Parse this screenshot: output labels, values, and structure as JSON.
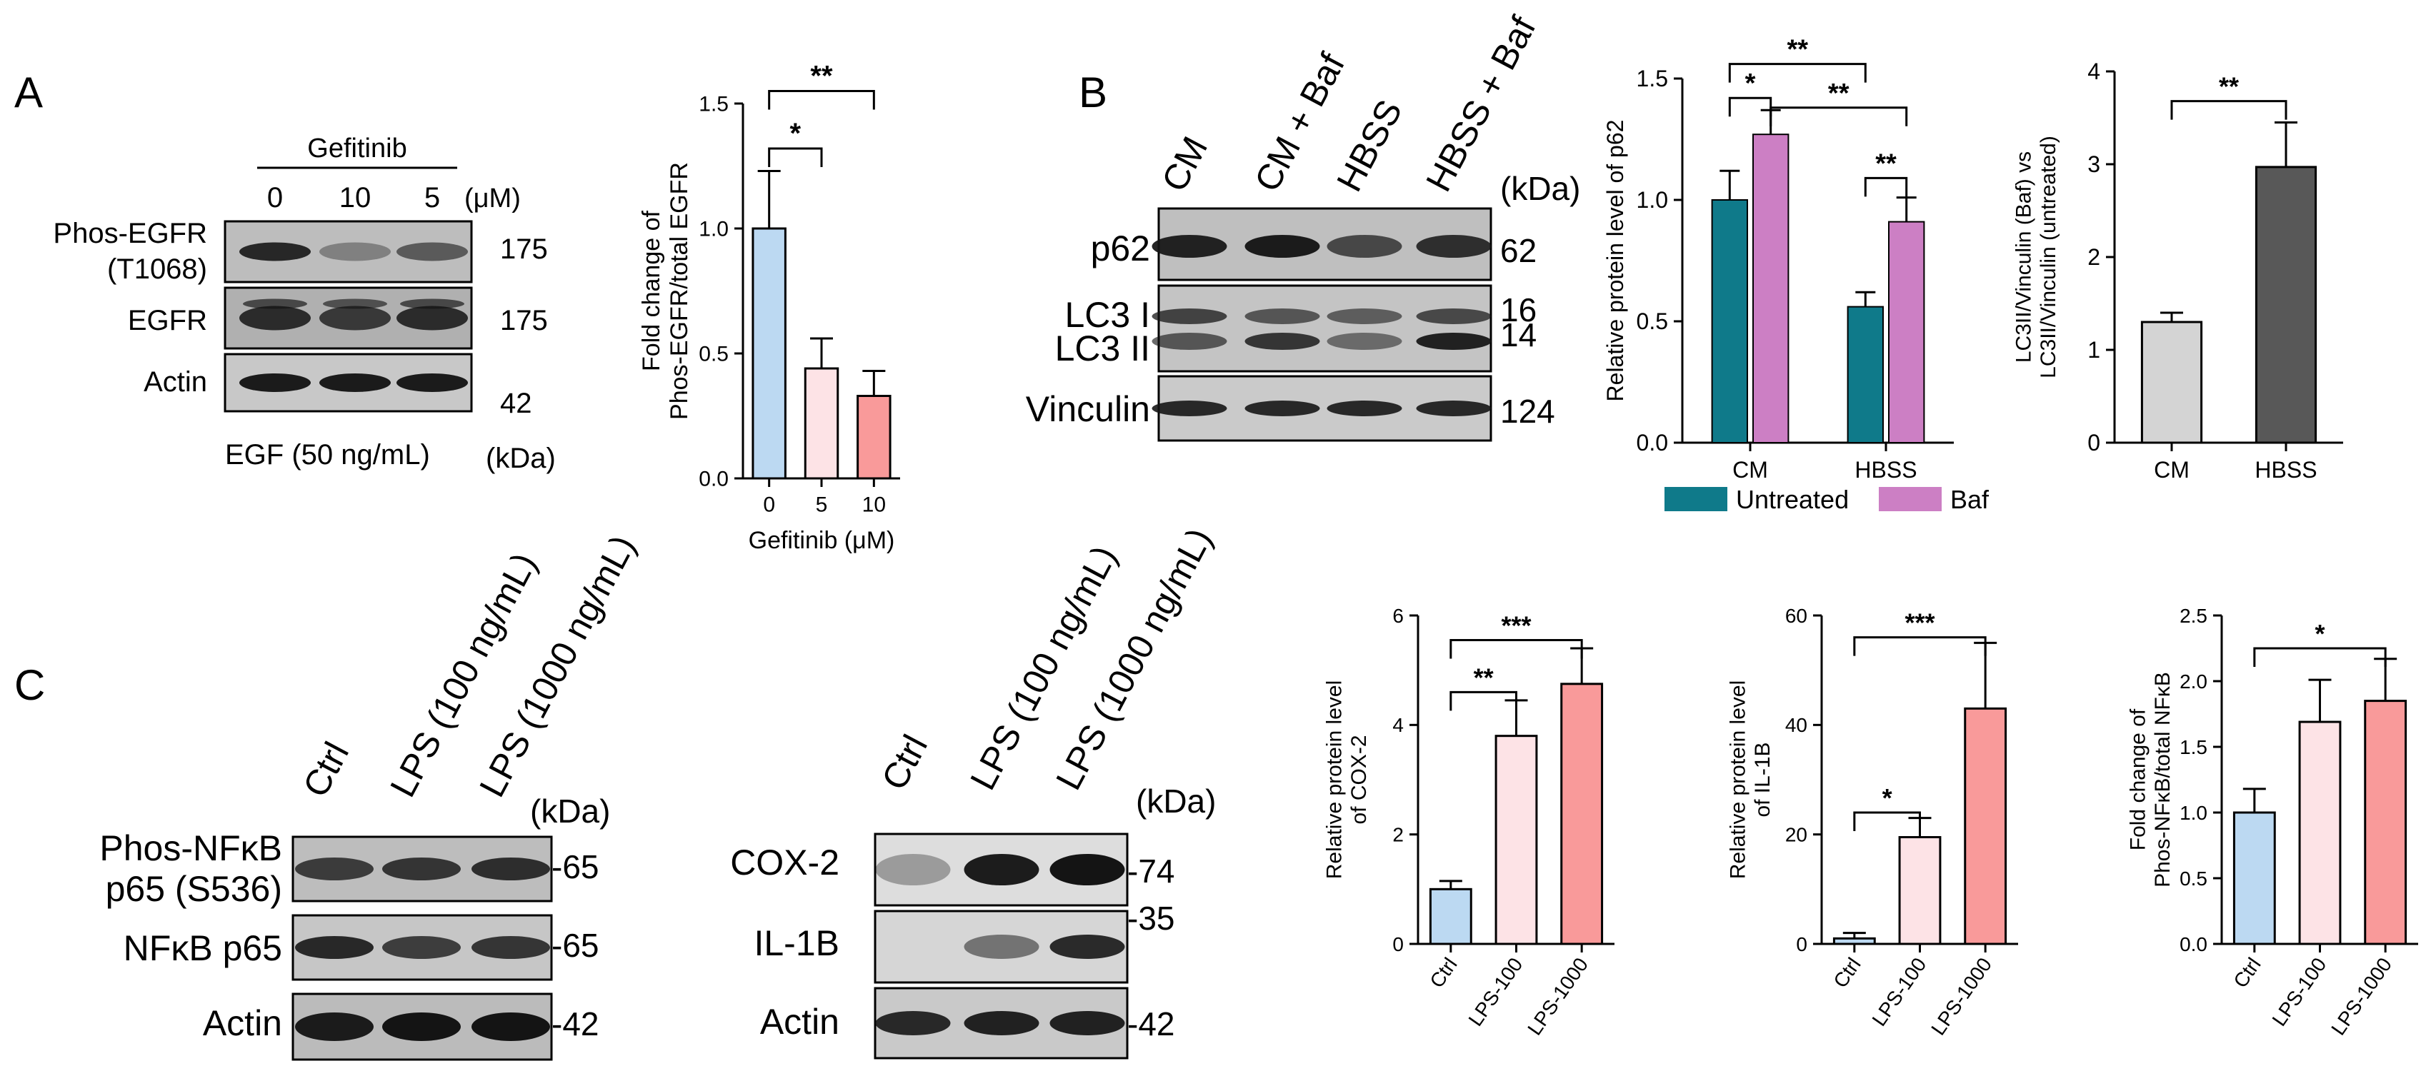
{
  "panel_letters": [
    "A",
    "B",
    "C"
  ],
  "blot_A": {
    "header": "Gefitinib",
    "lanes": [
      "0",
      "10",
      "5"
    ],
    "unit": "(μM)",
    "rows": [
      {
        "label": "Phos-EGFR",
        "label2": "(T1068)",
        "kda": "175"
      },
      {
        "label": "EGFR",
        "label2": "",
        "kda": "175"
      },
      {
        "label": "Actin",
        "label2": "",
        "kda": "42"
      }
    ],
    "footer": "EGF (50 ng/mL)",
    "kda_label": "(kDa)"
  },
  "blot_B": {
    "lanes": [
      "CM",
      "CM + Baf",
      "HBSS",
      "HBSS + Baf"
    ],
    "kda_label": "(kDa)",
    "rows": [
      {
        "label": "p62",
        "kda": "62"
      },
      {
        "label": "LC3 I",
        "kda": "16"
      },
      {
        "label": "LC3 II",
        "kda": "14"
      },
      {
        "label": "Vinculin",
        "kda": "124"
      }
    ]
  },
  "blot_C1": {
    "lanes": [
      "Ctrl",
      "LPS (100 ng/mL)",
      "LPS (1000 ng/mL)"
    ],
    "kda_label": "(kDa)",
    "rows": [
      {
        "label": "Phos-NFκB",
        "label2": "p65 (S536)",
        "kda": "-65"
      },
      {
        "label": "NFκB p65",
        "label2": "",
        "kda": "-65"
      },
      {
        "label": "Actin",
        "label2": "",
        "kda": "-42"
      }
    ]
  },
  "blot_C2": {
    "lanes": [
      "Ctrl",
      "LPS (100 ng/mL)",
      "LPS (1000 ng/mL)"
    ],
    "kda_label": "(kDa)",
    "rows": [
      {
        "label": "COX-2",
        "kda": "-74"
      },
      {
        "label": "IL-1B",
        "kda": "-35"
      },
      {
        "label": "Actin",
        "kda": "-42"
      }
    ]
  },
  "colors": {
    "light_blue": "#bcd9f2",
    "light_pink": "#fde3e6",
    "salmon": "#f99a9a",
    "teal": "#0f7a8a",
    "orchid": "#cc7fc4",
    "light_gray": "#d4d4d4",
    "dark_gray": "#585858"
  },
  "chart_data": [
    {
      "id": "A",
      "type": "bar",
      "categories": [
        "0",
        "5",
        "10"
      ],
      "values": [
        1.0,
        0.44,
        0.33
      ],
      "errors": [
        0.23,
        0.12,
        0.1
      ],
      "bar_colors": [
        "#bcd9f2",
        "#fde3e6",
        "#f99a9a"
      ],
      "xlabel": "Gefitinib (μM)",
      "ylabel": [
        "Fold change of",
        "Phos-EGFR/total EGFR"
      ],
      "ylim": [
        0,
        1.5
      ],
      "yticks": [
        "0.0",
        "0.5",
        "1.0",
        "1.5"
      ],
      "tick_values": [
        0,
        0.5,
        1.0,
        1.5
      ],
      "significance": [
        {
          "from": 0,
          "to": 1,
          "label": "*",
          "level": 1.32
        },
        {
          "from": 0,
          "to": 2,
          "label": "**",
          "level": 1.55
        }
      ]
    },
    {
      "id": "B1",
      "type": "bar",
      "categories": [
        "CM",
        "HBSS"
      ],
      "series": [
        {
          "name": "Untreated",
          "values": [
            1.0,
            0.56
          ],
          "errors": [
            0.12,
            0.06
          ],
          "color": "#0f7a8a"
        },
        {
          "name": "Baf",
          "values": [
            1.27,
            0.91
          ],
          "errors": [
            0.1,
            0.1
          ],
          "color": "#cc7fc4"
        }
      ],
      "ylabel": [
        "Relative protein level of p62"
      ],
      "ylim": [
        0,
        1.5
      ],
      "yticks": [
        "0.0",
        "0.5",
        "1.0",
        "1.5"
      ],
      "tick_values": [
        0,
        0.5,
        1.0,
        1.5
      ],
      "legend_position": "bottom",
      "significance": [
        {
          "from": [
            0,
            0
          ],
          "to": [
            0,
            1
          ],
          "label": "*",
          "level": 1.42
        },
        {
          "from": [
            0,
            0
          ],
          "to": [
            1,
            0
          ],
          "label": "**",
          "level": 1.56
        },
        {
          "from": [
            0,
            1
          ],
          "to": [
            1,
            1
          ],
          "label": "**",
          "level": 1.38
        },
        {
          "from": [
            1,
            0
          ],
          "to": [
            1,
            1
          ],
          "label": "**",
          "level": 1.09
        }
      ]
    },
    {
      "id": "B2",
      "type": "bar",
      "categories": [
        "CM",
        "HBSS"
      ],
      "values": [
        1.3,
        2.97
      ],
      "errors": [
        0.1,
        0.48
      ],
      "bar_colors": [
        "#d4d4d4",
        "#585858"
      ],
      "ylabel": [
        "LC3II/Vinculin (Baf) vs",
        "LC3II/Vinculin (untreated)"
      ],
      "ylim": [
        0,
        4
      ],
      "yticks": [
        "0",
        "1",
        "2",
        "3",
        "4"
      ],
      "tick_values": [
        0,
        1,
        2,
        3,
        4
      ],
      "significance": [
        {
          "from": 0,
          "to": 1,
          "label": "**",
          "level": 3.68
        }
      ]
    },
    {
      "id": "C1",
      "type": "bar",
      "categories": [
        "Ctrl",
        "LPS-100",
        "LPS-1000"
      ],
      "values": [
        1.0,
        3.8,
        4.75
      ],
      "errors": [
        0.15,
        0.65,
        0.65
      ],
      "bar_colors": [
        "#bcd9f2",
        "#fde3e6",
        "#f99a9a"
      ],
      "ylabel": [
        "Relative protein level",
        "of COX-2"
      ],
      "ylim": [
        0,
        6
      ],
      "yticks": [
        "0",
        "2",
        "4",
        "6"
      ],
      "tick_values": [
        0,
        2,
        4,
        6
      ],
      "significance": [
        {
          "from": 0,
          "to": 1,
          "label": "**",
          "level": 4.6
        },
        {
          "from": 0,
          "to": 2,
          "label": "***",
          "level": 5.55
        }
      ]
    },
    {
      "id": "C2",
      "type": "bar",
      "categories": [
        "Ctrl",
        "LPS-100",
        "LPS-1000"
      ],
      "values": [
        1.0,
        19.5,
        43.0
      ],
      "errors": [
        1.0,
        3.5,
        12.0
      ],
      "bar_colors": [
        "#bcd9f2",
        "#fde3e6",
        "#f99a9a"
      ],
      "ylabel": [
        "Relative protein level",
        "of IL-1B"
      ],
      "ylim": [
        0,
        60
      ],
      "yticks": [
        "0",
        "20",
        "40",
        "60"
      ],
      "tick_values": [
        0,
        20,
        40,
        60
      ],
      "significance": [
        {
          "from": 0,
          "to": 1,
          "label": "*",
          "level": 24
        },
        {
          "from": 0,
          "to": 2,
          "label": "***",
          "level": 56
        }
      ]
    },
    {
      "id": "C3",
      "type": "bar",
      "categories": [
        "Ctrl",
        "LPS-100",
        "LPS-1000"
      ],
      "values": [
        1.0,
        1.69,
        1.85
      ],
      "errors": [
        0.18,
        0.32,
        0.32
      ],
      "bar_colors": [
        "#bcd9f2",
        "#fde3e6",
        "#f99a9a"
      ],
      "ylabel": [
        "Fold change of",
        "Phos-NFκB/total NFκB"
      ],
      "ylim": [
        0,
        2.5
      ],
      "yticks": [
        "0.0",
        "0.5",
        "1.0",
        "1.5",
        "2.0",
        "2.5"
      ],
      "tick_values": [
        0,
        0.5,
        1.0,
        1.5,
        2.0,
        2.5
      ],
      "significance": [
        {
          "from": 0,
          "to": 2,
          "label": "*",
          "level": 2.25
        }
      ]
    }
  ]
}
